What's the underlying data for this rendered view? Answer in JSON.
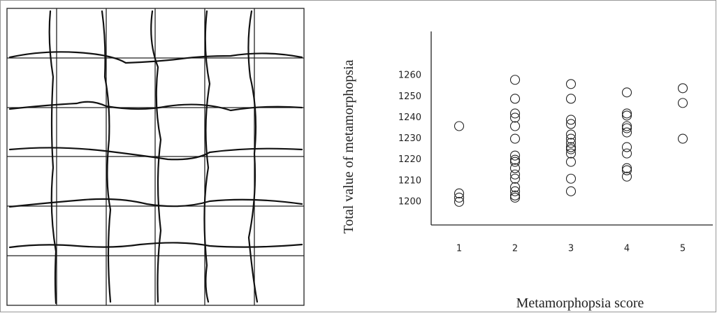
{
  "chart_data": {
    "type": "scatter",
    "xlabel": "Metamorphopsia score",
    "ylabel": "Total value of metamorphopsia",
    "x": [
      1,
      1,
      1,
      1,
      2,
      2,
      2,
      2,
      2,
      2,
      2,
      2,
      2,
      2,
      2,
      2,
      2,
      2,
      2,
      2,
      3,
      3,
      3,
      3,
      3,
      3,
      3,
      3,
      3,
      3,
      3,
      3,
      3,
      4,
      4,
      4,
      4,
      4,
      4,
      4,
      4,
      4,
      4,
      4,
      5,
      5,
      5
    ],
    "y": [
      1236,
      1204,
      1202,
      1200,
      1258,
      1249,
      1242,
      1240,
      1236,
      1230,
      1222,
      1220,
      1219,
      1216,
      1213,
      1211,
      1207,
      1205,
      1203,
      1202,
      1256,
      1249,
      1239,
      1237,
      1232,
      1230,
      1228,
      1226,
      1225,
      1223,
      1219,
      1211,
      1205,
      1252,
      1242,
      1241,
      1236,
      1235,
      1233,
      1226,
      1223,
      1216,
      1215,
      1212,
      1254,
      1247,
      1230
    ],
    "color": "#222222",
    "xlim": [
      0.5,
      5.5
    ],
    "xticks": [
      1,
      2,
      3,
      4,
      5
    ],
    "ylim": [
      1189,
      1281
    ],
    "yticks": [
      1200,
      1210,
      1220,
      1230,
      1240,
      1250,
      1260
    ],
    "grid": false
  }
}
